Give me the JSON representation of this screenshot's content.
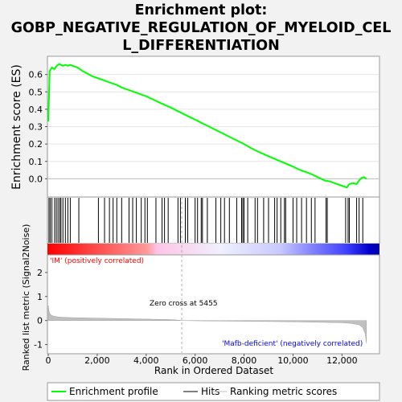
{
  "title": "Enrichment plot: GOBP_NEGATIVE_REGULATION_OF_MYELOID_CELL_DIFFERENTIATION",
  "title_lines": [
    "Enrichment plot:",
    "GOBP_NEGATIVE_REGULATION_OF_MYELOID_CEL",
    "L_DIFFERENTIATION"
  ],
  "colors": {
    "enrichment": "#00ff00",
    "hits": "#000000",
    "metric": "#c0c0c0",
    "positive": "#ff0000",
    "negative": "#0000ff",
    "zero_line": "#c0c0c0"
  },
  "chart_data": [
    {
      "type": "line",
      "name": "enrichment-profile",
      "ylabel": "Enrichment score (ES)",
      "xlim": [
        0,
        13500
      ],
      "ylim": [
        -0.1,
        0.7
      ],
      "yticks": [
        0.0,
        0.1,
        0.2,
        0.3,
        0.4,
        0.5,
        0.6
      ],
      "ytick_labels": [
        "0.0",
        "0.1",
        "0.2",
        "0.3",
        "0.4",
        "0.5",
        "0.6"
      ],
      "grid": true,
      "x": [
        0,
        60,
        150,
        250,
        350,
        450,
        520,
        600,
        700,
        800,
        900,
        1000,
        1200,
        1400,
        1600,
        1800,
        2000,
        2200,
        2500,
        2800,
        3000,
        3300,
        3600,
        4000,
        4300,
        4600,
        5000,
        5500,
        6000,
        6500,
        7000,
        7500,
        8000,
        8300,
        8600,
        9000,
        9500,
        10000,
        10300,
        10700,
        11000,
        11300,
        11500,
        11700,
        12000,
        12200,
        12300,
        12450,
        12600,
        12700,
        12800,
        12900,
        13000
      ],
      "y": [
        0.33,
        0.62,
        0.64,
        0.63,
        0.65,
        0.66,
        0.655,
        0.65,
        0.655,
        0.65,
        0.655,
        0.65,
        0.64,
        0.62,
        0.605,
        0.59,
        0.58,
        0.57,
        0.555,
        0.54,
        0.525,
        0.51,
        0.495,
        0.475,
        0.455,
        0.435,
        0.41,
        0.375,
        0.34,
        0.305,
        0.27,
        0.235,
        0.2,
        0.175,
        0.155,
        0.13,
        0.1,
        0.07,
        0.05,
        0.03,
        0.01,
        -0.01,
        -0.015,
        -0.025,
        -0.04,
        -0.05,
        -0.03,
        -0.025,
        -0.03,
        -0.01,
        0.005,
        0.01,
        0.0
      ]
    },
    {
      "type": "scatter",
      "name": "hits",
      "legend": "Hits",
      "x": [
        30,
        80,
        150,
        260,
        330,
        400,
        470,
        520,
        600,
        700,
        800,
        900,
        1250,
        2050,
        2300,
        2500,
        2650,
        2800,
        3000,
        3300,
        3450,
        3600,
        3800,
        3950,
        4050,
        4400,
        4650,
        4750,
        4900,
        5300,
        5400,
        5600,
        5700,
        6000,
        6100,
        6250,
        6300,
        6500,
        6850,
        7050,
        7200,
        7400,
        7700,
        7900,
        7950,
        8000,
        8150,
        8450,
        8550,
        8800,
        9000,
        9250,
        9350,
        9500,
        9650,
        9700,
        10000,
        10150,
        10350,
        10550,
        10750,
        10900,
        11350,
        11400,
        12150,
        12250,
        12300,
        12600,
        12700,
        12850
      ]
    },
    {
      "type": "area",
      "name": "ranked-list-metric",
      "ylabel": "Ranked list metric (Signal2Noise)",
      "xlabel": "Rank in Ordered Dataset",
      "xlim": [
        0,
        13500
      ],
      "ylim": [
        -1.35,
        2.7
      ],
      "yticks": [
        -1,
        0,
        1,
        2
      ],
      "ytick_labels": [
        "-1",
        "0",
        "1",
        "2"
      ],
      "xticks": [
        0,
        2000,
        4000,
        6000,
        8000,
        10000,
        12000
      ],
      "xtick_labels": [
        "0",
        "2,000",
        "4,000",
        "6,000",
        "8,000",
        "10,000",
        "12,000"
      ],
      "x": [
        0,
        20,
        50,
        100,
        200,
        400,
        700,
        1000,
        2000,
        3000,
        4000,
        5000,
        5455,
        6000,
        7000,
        8000,
        9000,
        10000,
        11000,
        12000,
        12400,
        12700,
        12850,
        12950,
        13000
      ],
      "y": [
        0.62,
        0.45,
        0.33,
        0.24,
        0.19,
        0.15,
        0.13,
        0.12,
        0.1,
        0.08,
        0.06,
        0.04,
        0.0,
        -0.01,
        -0.02,
        -0.03,
        -0.04,
        -0.05,
        -0.07,
        -0.09,
        -0.12,
        -0.18,
        -0.3,
        -0.55,
        -0.95
      ],
      "zero_cross": 5455,
      "annotations": {
        "zero_cross": "Zero cross at 5455",
        "positive": "'IM' (positively correlated)",
        "negative": "'Mafb-deficient' (negatively correlated)"
      }
    }
  ],
  "legend": {
    "items": [
      "Enrichment profile",
      "Hits",
      "Ranking metric scores"
    ]
  }
}
